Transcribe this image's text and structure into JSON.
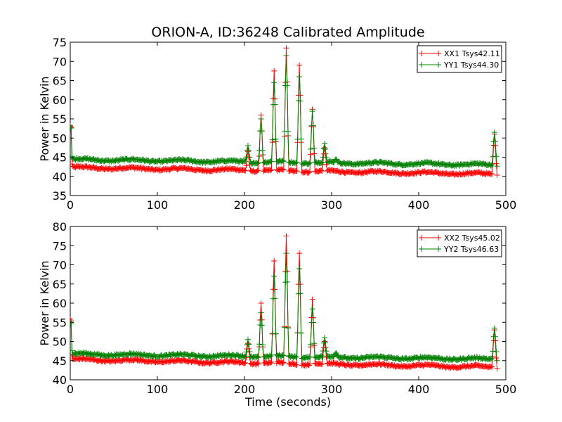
{
  "chart_data": {
    "title": "ORION-A, ID:36248 Calibrated Amplitude",
    "type": "line",
    "xlabel": "Time (seconds)",
    "panels": [
      {
        "ylabel": "Power in Kelvin",
        "xlim": [
          0,
          500
        ],
        "ylim": [
          35,
          75
        ],
        "xticks": [
          "0",
          "100",
          "200",
          "300",
          "400",
          "500"
        ],
        "yticks": [
          "35",
          "40",
          "45",
          "50",
          "55",
          "60",
          "65",
          "70",
          "75"
        ],
        "legend_position": "top-right",
        "series": [
          {
            "name": "XX1 Tsys42.11",
            "color": "#ff0000",
            "baseline_start": 42.3,
            "baseline_end": 40.6,
            "start_value": 53.2,
            "spikes": [
              [
                204,
                46.5
              ],
              [
                219,
                56.0
              ],
              [
                234,
                67.5
              ],
              [
                248,
                73.5
              ],
              [
                263,
                69.0
              ],
              [
                278,
                57.5
              ],
              [
                292,
                47.5
              ],
              [
                487,
                51.0
              ]
            ]
          },
          {
            "name": "YY1 Tsys44.30",
            "color": "#008000",
            "baseline_start": 44.4,
            "baseline_end": 43.0,
            "start_value": 53.0,
            "spikes": [
              [
                204,
                48.0
              ],
              [
                219,
                55.0
              ],
              [
                234,
                64.5
              ],
              [
                248,
                71.5
              ],
              [
                263,
                66.0
              ],
              [
                278,
                57.0
              ],
              [
                292,
                48.5
              ],
              [
                305,
                44.5
              ],
              [
                487,
                51.5
              ]
            ]
          }
        ]
      },
      {
        "ylabel": "Power in Kelvin",
        "xlim": [
          0,
          500
        ],
        "ylim": [
          40,
          80
        ],
        "xticks": [
          "0",
          "100",
          "200",
          "300",
          "400",
          "500"
        ],
        "yticks": [
          "40",
          "45",
          "50",
          "55",
          "60",
          "65",
          "70",
          "75",
          "80"
        ],
        "legend_position": "top-right",
        "series": [
          {
            "name": "XX2 Tsys45.02",
            "color": "#ff0000",
            "baseline_start": 45.3,
            "baseline_end": 43.3,
            "start_value": 55.8,
            "spikes": [
              [
                204,
                49.5
              ],
              [
                219,
                60.0
              ],
              [
                234,
                71.0
              ],
              [
                248,
                77.5
              ],
              [
                263,
                73.0
              ],
              [
                278,
                61.0
              ],
              [
                292,
                50.0
              ],
              [
                487,
                53.0
              ]
            ]
          },
          {
            "name": "YY2 Tsys46.63",
            "color": "#008000",
            "baseline_start": 46.7,
            "baseline_end": 45.4,
            "start_value": 55.0,
            "spikes": [
              [
                204,
                50.5
              ],
              [
                219,
                57.5
              ],
              [
                234,
                67.0
              ],
              [
                248,
                73.0
              ],
              [
                263,
                69.0
              ],
              [
                278,
                58.5
              ],
              [
                292,
                51.0
              ],
              [
                305,
                47.0
              ],
              [
                487,
                53.5
              ]
            ]
          }
        ]
      }
    ]
  }
}
